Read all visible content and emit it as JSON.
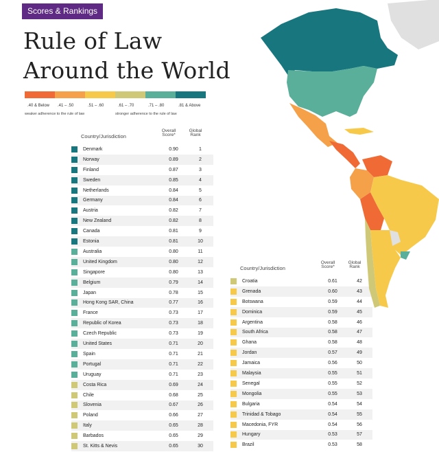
{
  "header": {
    "badge": "Scores & Rankings",
    "title_line1": "Rule of Law",
    "title_line2": "Around the World"
  },
  "legend": {
    "colors": [
      "#ef6a34",
      "#f5a14a",
      "#f7c94a",
      "#cfc977",
      "#5aaf9a",
      "#17767e"
    ],
    "labels": [
      ".40 & Below",
      ".41 – .50",
      ".51 – .60",
      ".61 – .70",
      ".71 – .80",
      ".81 & Above"
    ],
    "note_left": "weaker adherence to the rule of law",
    "note_right": "stronger adherence to the rule of law"
  },
  "columns": {
    "country": "Country/Jurisdiction",
    "score": "Overall Score*",
    "rank": "Global Rank"
  },
  "chart_data": {
    "type": "table",
    "title": "Rule of Law Around the World",
    "columns": [
      "Country/Jurisdiction",
      "Overall Score*",
      "Global Rank"
    ],
    "rows": [
      {
        "country": "Denmark",
        "score": "0.90",
        "rank": "1"
      },
      {
        "country": "Norway",
        "score": "0.89",
        "rank": "2"
      },
      {
        "country": "Finland",
        "score": "0.87",
        "rank": "3"
      },
      {
        "country": "Sweden",
        "score": "0.85",
        "rank": "4"
      },
      {
        "country": "Netherlands",
        "score": "0.84",
        "rank": "5"
      },
      {
        "country": "Germany",
        "score": "0.84",
        "rank": "6"
      },
      {
        "country": "Austria",
        "score": "0.82",
        "rank": "7"
      },
      {
        "country": "New Zealand",
        "score": "0.82",
        "rank": "8"
      },
      {
        "country": "Canada",
        "score": "0.81",
        "rank": "9"
      },
      {
        "country": "Estonia",
        "score": "0.81",
        "rank": "10"
      },
      {
        "country": "Australia",
        "score": "0.80",
        "rank": "11"
      },
      {
        "country": "United Kingdom",
        "score": "0.80",
        "rank": "12"
      },
      {
        "country": "Singapore",
        "score": "0.80",
        "rank": "13"
      },
      {
        "country": "Belgium",
        "score": "0.79",
        "rank": "14"
      },
      {
        "country": "Japan",
        "score": "0.78",
        "rank": "15"
      },
      {
        "country": "Hong Kong SAR, China",
        "score": "0.77",
        "rank": "16"
      },
      {
        "country": "France",
        "score": "0.73",
        "rank": "17"
      },
      {
        "country": "Republic of Korea",
        "score": "0.73",
        "rank": "18"
      },
      {
        "country": "Czech Republic",
        "score": "0.73",
        "rank": "19"
      },
      {
        "country": "United States",
        "score": "0.71",
        "rank": "20"
      },
      {
        "country": "Spain",
        "score": "0.71",
        "rank": "21"
      },
      {
        "country": "Portugal",
        "score": "0.71",
        "rank": "22"
      },
      {
        "country": "Uruguay",
        "score": "0.71",
        "rank": "23"
      },
      {
        "country": "Costa Rica",
        "score": "0.69",
        "rank": "24"
      },
      {
        "country": "Chile",
        "score": "0.68",
        "rank": "25"
      },
      {
        "country": "Slovenia",
        "score": "0.67",
        "rank": "26"
      },
      {
        "country": "Poland",
        "score": "0.66",
        "rank": "27"
      },
      {
        "country": "Italy",
        "score": "0.65",
        "rank": "28"
      },
      {
        "country": "Barbados",
        "score": "0.65",
        "rank": "29"
      },
      {
        "country": "St. Kitts & Nevis",
        "score": "0.65",
        "rank": "30"
      },
      {
        "country": "Croatia",
        "score": "0.61",
        "rank": "42"
      },
      {
        "country": "Grenada",
        "score": "0.60",
        "rank": "43"
      },
      {
        "country": "Botswana",
        "score": "0.59",
        "rank": "44"
      },
      {
        "country": "Dominica",
        "score": "0.59",
        "rank": "45"
      },
      {
        "country": "Argentina",
        "score": "0.58",
        "rank": "46"
      },
      {
        "country": "South Africa",
        "score": "0.58",
        "rank": "47"
      },
      {
        "country": "Ghana",
        "score": "0.58",
        "rank": "48"
      },
      {
        "country": "Jordan",
        "score": "0.57",
        "rank": "49"
      },
      {
        "country": "Jamaica",
        "score": "0.56",
        "rank": "50"
      },
      {
        "country": "Malaysia",
        "score": "0.55",
        "rank": "51"
      },
      {
        "country": "Senegal",
        "score": "0.55",
        "rank": "52"
      },
      {
        "country": "Mongolia",
        "score": "0.55",
        "rank": "53"
      },
      {
        "country": "Bulgaria",
        "score": "0.54",
        "rank": "54"
      },
      {
        "country": "Trinidad & Tobago",
        "score": "0.54",
        "rank": "55"
      },
      {
        "country": "Macedonia, FYR",
        "score": "0.54",
        "rank": "56"
      },
      {
        "country": "Hungary",
        "score": "0.53",
        "rank": "57"
      },
      {
        "country": "Brazil",
        "score": "0.53",
        "rank": "58"
      }
    ]
  }
}
